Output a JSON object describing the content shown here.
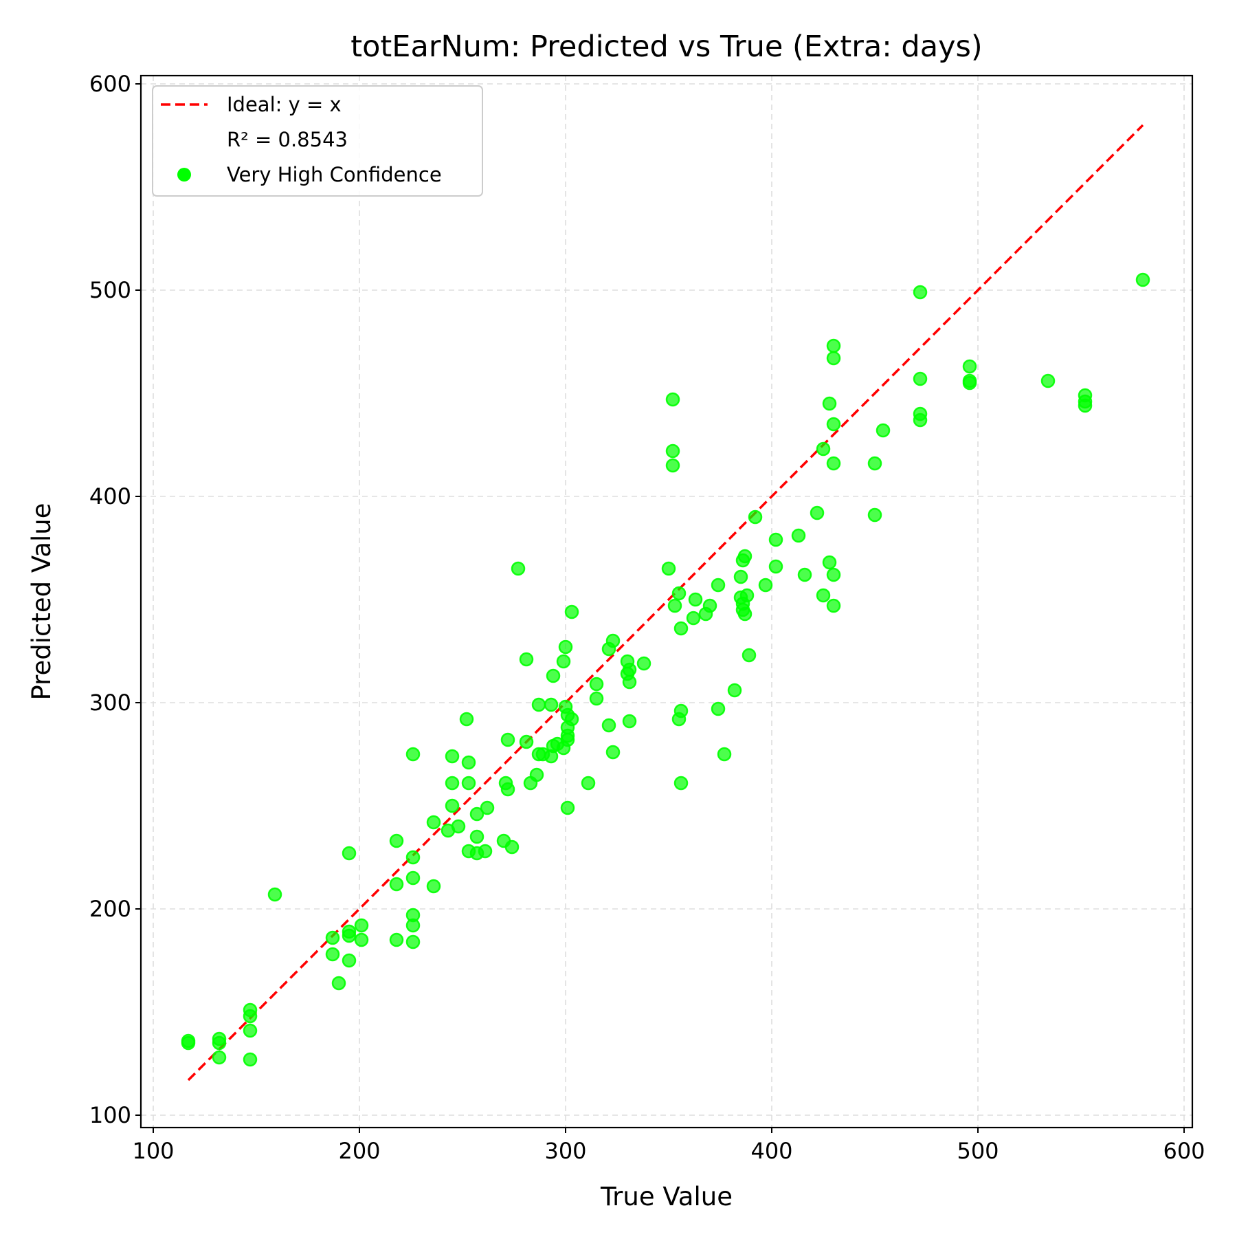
{
  "chart_data": {
    "type": "scatter",
    "title": "totEarNum: Predicted vs True (Extra: days)",
    "xlabel": "True Value",
    "ylabel": "Predicted Value",
    "xlim": [
      94,
      604
    ],
    "ylim": [
      94,
      604
    ],
    "xticks": [
      100,
      200,
      300,
      400,
      500,
      600
    ],
    "yticks": [
      100,
      200,
      300,
      400,
      500,
      600
    ],
    "tick_labels_x": [
      "100",
      "200",
      "300",
      "400",
      "500",
      "600"
    ],
    "tick_labels_y": [
      "100",
      "200",
      "300",
      "400",
      "500",
      "600"
    ],
    "grid": true,
    "legend_position": "top-left",
    "r2_text": "R² = 0.8543",
    "ideal_line": {
      "name": "Ideal: y = x",
      "from": 117,
      "to": 580,
      "color": "#ff0000",
      "style": "dashed"
    },
    "series": [
      {
        "name": "Very High Confidence",
        "color": "#00ff00",
        "points": [
          [
            117,
            135
          ],
          [
            117,
            136
          ],
          [
            132,
            128
          ],
          [
            132,
            135
          ],
          [
            132,
            137
          ],
          [
            147,
            127
          ],
          [
            147,
            141
          ],
          [
            147,
            148
          ],
          [
            147,
            151
          ],
          [
            159,
            207
          ],
          [
            187,
            178
          ],
          [
            187,
            186
          ],
          [
            190,
            164
          ],
          [
            195,
            175
          ],
          [
            195,
            187
          ],
          [
            195,
            189
          ],
          [
            195,
            227
          ],
          [
            201,
            185
          ],
          [
            201,
            192
          ],
          [
            218,
            185
          ],
          [
            218,
            212
          ],
          [
            218,
            233
          ],
          [
            226,
            184
          ],
          [
            226,
            192
          ],
          [
            226,
            197
          ],
          [
            226,
            215
          ],
          [
            226,
            225
          ],
          [
            226,
            275
          ],
          [
            236,
            211
          ],
          [
            236,
            242
          ],
          [
            243,
            238
          ],
          [
            245,
            250
          ],
          [
            245,
            261
          ],
          [
            245,
            274
          ],
          [
            248,
            240
          ],
          [
            252,
            292
          ],
          [
            253,
            228
          ],
          [
            253,
            261
          ],
          [
            253,
            271
          ],
          [
            257,
            227
          ],
          [
            257,
            235
          ],
          [
            257,
            246
          ],
          [
            261,
            228
          ],
          [
            262,
            249
          ],
          [
            270,
            233
          ],
          [
            271,
            261
          ],
          [
            272,
            258
          ],
          [
            272,
            282
          ],
          [
            274,
            230
          ],
          [
            277,
            365
          ],
          [
            281,
            281
          ],
          [
            281,
            321
          ],
          [
            283,
            261
          ],
          [
            286,
            265
          ],
          [
            287,
            275
          ],
          [
            287,
            299
          ],
          [
            289,
            275
          ],
          [
            293,
            274
          ],
          [
            293,
            299
          ],
          [
            294,
            279
          ],
          [
            294,
            313
          ],
          [
            296,
            280
          ],
          [
            299,
            278
          ],
          [
            299,
            320
          ],
          [
            300,
            298
          ],
          [
            300,
            327
          ],
          [
            301,
            282
          ],
          [
            301,
            284
          ],
          [
            301,
            288
          ],
          [
            301,
            294
          ],
          [
            301,
            249
          ],
          [
            303,
            292
          ],
          [
            303,
            344
          ],
          [
            311,
            261
          ],
          [
            315,
            302
          ],
          [
            315,
            309
          ],
          [
            321,
            289
          ],
          [
            321,
            326
          ],
          [
            323,
            276
          ],
          [
            323,
            330
          ],
          [
            330,
            314
          ],
          [
            330,
            320
          ],
          [
            331,
            291
          ],
          [
            331,
            310
          ],
          [
            331,
            316
          ],
          [
            338,
            319
          ],
          [
            350,
            365
          ],
          [
            352,
            415
          ],
          [
            352,
            422
          ],
          [
            352,
            447
          ],
          [
            353,
            347
          ],
          [
            355,
            292
          ],
          [
            355,
            353
          ],
          [
            356,
            261
          ],
          [
            356,
            296
          ],
          [
            356,
            336
          ],
          [
            362,
            341
          ],
          [
            363,
            350
          ],
          [
            368,
            343
          ],
          [
            370,
            347
          ],
          [
            374,
            297
          ],
          [
            374,
            357
          ],
          [
            377,
            275
          ],
          [
            382,
            306
          ],
          [
            385,
            351
          ],
          [
            385,
            361
          ],
          [
            386,
            345
          ],
          [
            386,
            348
          ],
          [
            386,
            369
          ],
          [
            387,
            371
          ],
          [
            387,
            343
          ],
          [
            388,
            352
          ],
          [
            389,
            323
          ],
          [
            392,
            390
          ],
          [
            397,
            357
          ],
          [
            402,
            366
          ],
          [
            402,
            379
          ],
          [
            413,
            381
          ],
          [
            416,
            362
          ],
          [
            422,
            392
          ],
          [
            425,
            352
          ],
          [
            425,
            423
          ],
          [
            428,
            368
          ],
          [
            428,
            445
          ],
          [
            430,
            347
          ],
          [
            430,
            362
          ],
          [
            430,
            416
          ],
          [
            430,
            435
          ],
          [
            430,
            467
          ],
          [
            430,
            473
          ],
          [
            450,
            391
          ],
          [
            450,
            416
          ],
          [
            454,
            432
          ],
          [
            472,
            437
          ],
          [
            472,
            440
          ],
          [
            472,
            457
          ],
          [
            472,
            499
          ],
          [
            496,
            455
          ],
          [
            496,
            456
          ],
          [
            496,
            463
          ],
          [
            534,
            456
          ],
          [
            552,
            444
          ],
          [
            552,
            446
          ],
          [
            552,
            449
          ],
          [
            580,
            505
          ]
        ]
      }
    ]
  }
}
